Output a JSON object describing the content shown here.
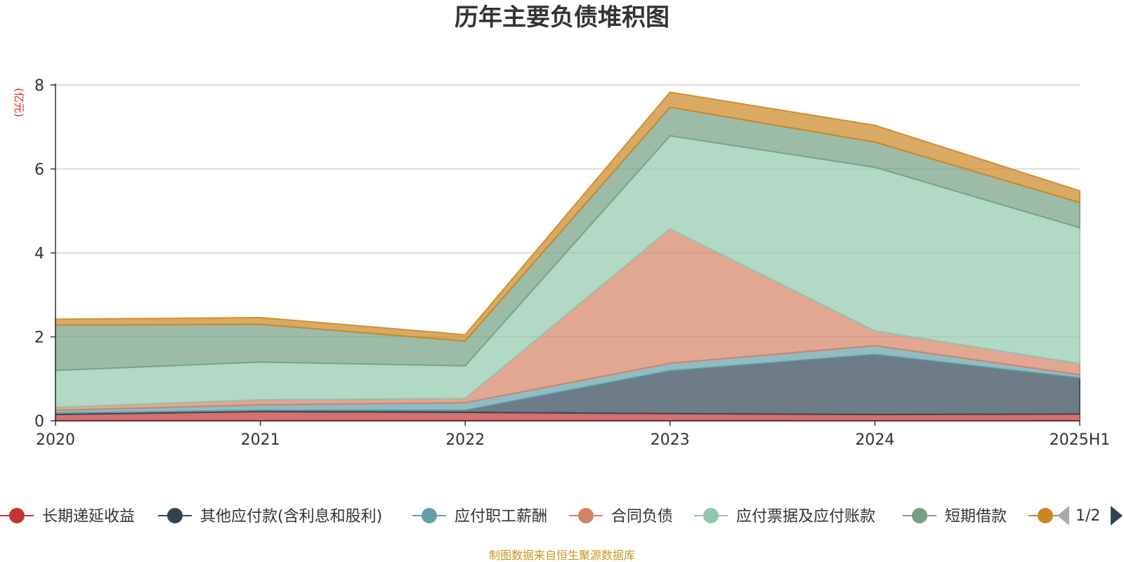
{
  "chart_data": {
    "type": "area",
    "stacked": true,
    "title": "历年主要负债堆积图",
    "unit_label": "(亿元)",
    "categories": [
      "2020",
      "2021",
      "2022",
      "2023",
      "2024",
      "2025H1"
    ],
    "ylim": [
      0,
      8
    ],
    "yticks": [
      "0",
      "2",
      "4",
      "6",
      "8"
    ],
    "grid": true,
    "legend_position": "bottom",
    "series": [
      {
        "name": "长期递延收益",
        "color": "#c23531",
        "values": [
          0.15,
          0.22,
          0.2,
          0.17,
          0.15,
          0.16
        ]
      },
      {
        "name": "其他应付款(含利息和股利)",
        "color": "#2f4554",
        "values": [
          0.03,
          0.03,
          0.05,
          1.02,
          1.43,
          0.86
        ]
      },
      {
        "name": "应付职工薪酬",
        "color": "#61a0a8",
        "values": [
          0.07,
          0.13,
          0.18,
          0.18,
          0.21,
          0.08
        ]
      },
      {
        "name": "合同负债",
        "color": "#d48265",
        "values": [
          0.07,
          0.12,
          0.1,
          3.2,
          0.35,
          0.26
        ]
      },
      {
        "name": "应付票据及应付账款",
        "color": "#91c7ae",
        "values": [
          0.88,
          0.9,
          0.78,
          2.22,
          3.9,
          3.24
        ]
      },
      {
        "name": "短期借款",
        "color": "#749f83",
        "values": [
          1.08,
          0.9,
          0.59,
          0.68,
          0.6,
          0.6
        ]
      },
      {
        "name": "",
        "color": "#ca8622",
        "values": [
          0.14,
          0.16,
          0.15,
          0.36,
          0.4,
          0.28
        ]
      }
    ],
    "legend_page": "1/2"
  },
  "footer": {
    "source": "制图数据来自恒生聚源数据库"
  }
}
